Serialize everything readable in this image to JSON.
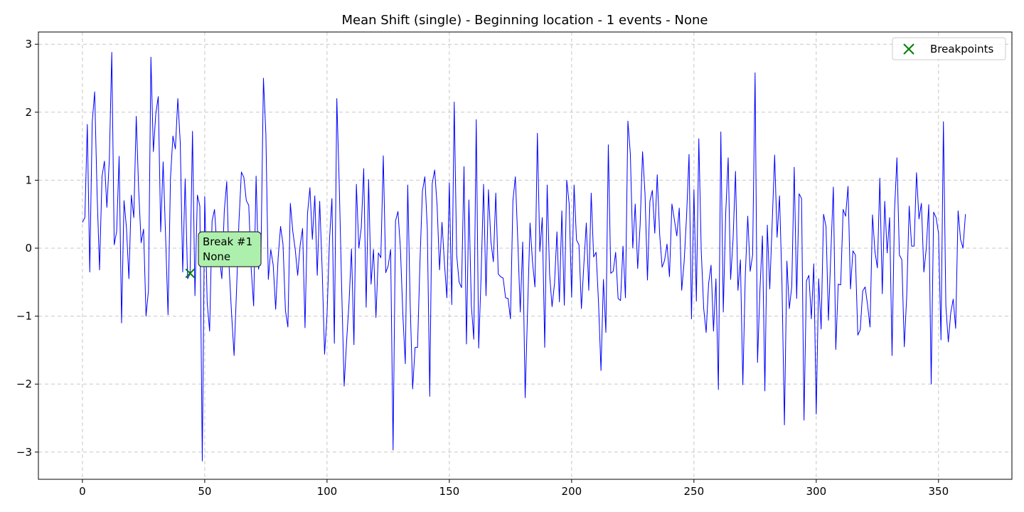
{
  "chart_data": {
    "type": "line",
    "title": "Mean Shift (single) - Beginning location - 1 events - None",
    "xlabel": "",
    "ylabel": "",
    "xlim": [
      -18,
      380
    ],
    "ylim": [
      -3.4,
      3.18
    ],
    "xticks": [
      0,
      50,
      100,
      150,
      200,
      250,
      300,
      350
    ],
    "yticks": [
      -3,
      -2,
      -1,
      0,
      1,
      2,
      3
    ],
    "grid": true,
    "series": [
      {
        "name": "",
        "color": "#0000ff",
        "x_start": 0,
        "values": [
          0.38,
          0.45,
          1.82,
          -0.35,
          1.85,
          2.3,
          0.8,
          -0.32,
          1.05,
          1.28,
          0.6,
          1.3,
          2.88,
          0.05,
          0.25,
          1.35,
          -1.1,
          0.7,
          0.3,
          -0.45,
          0.78,
          0.45,
          1.94,
          0.85,
          0.08,
          0.28,
          -1.0,
          -0.62,
          2.81,
          1.42,
          1.98,
          2.23,
          0.24,
          1.27,
          0.18,
          -0.98,
          1.03,
          1.65,
          1.46,
          2.2,
          1.55,
          -0.35,
          1.02,
          -0.45,
          -0.38,
          1.72,
          -0.7,
          0.78,
          0.62,
          -3.13,
          0.76,
          -0.8,
          -1.22,
          0.4,
          0.57,
          0.0,
          -0.14,
          -0.45,
          0.55,
          0.98,
          -0.3,
          -0.98,
          -1.58,
          -0.62,
          0.4,
          1.12,
          1.04,
          0.7,
          0.63,
          -0.3,
          -0.85,
          1.06,
          -0.31,
          -0.1,
          2.5,
          1.68,
          -0.46,
          -0.02,
          -0.25,
          -0.9,
          -0.15,
          0.32,
          0.06,
          -0.92,
          -1.16,
          0.66,
          0.25,
          -0.02,
          -0.4,
          0.04,
          0.29,
          -1.17,
          0.5,
          0.89,
          0.13,
          0.77,
          -0.4,
          0.69,
          -0.3,
          -1.56,
          -0.98,
          0.12,
          0.73,
          -1.4,
          2.2,
          0.93,
          -0.61,
          -2.03,
          -1.37,
          -0.8,
          -0.01,
          -1.42,
          0.94,
          0.0,
          0.3,
          1.17,
          -0.87,
          1.01,
          -0.53,
          -0.02,
          -1.02,
          -0.07,
          -0.14,
          1.36,
          -0.36,
          -0.26,
          -0.02,
          -2.97,
          0.4,
          0.54,
          0.0,
          -0.98,
          -1.7,
          0.93,
          -0.83,
          -2.07,
          -1.46,
          -1.46,
          -0.2,
          0.84,
          1.05,
          0.29,
          -2.18,
          0.95,
          1.15,
          0.63,
          -0.32,
          0.38,
          -0.22,
          -0.73,
          0.96,
          -0.83,
          2.15,
          -0.1,
          -0.5,
          -0.58,
          1.2,
          -1.41,
          0.71,
          -0.84,
          -1.34,
          1.89,
          -1.47,
          -0.4,
          0.94,
          -0.7,
          0.86,
          0.1,
          -0.2,
          0.81,
          -0.38,
          -0.42,
          -0.44,
          -0.73,
          -0.74,
          -1.04,
          0.7,
          1.05,
          0.1,
          -0.94,
          0.09,
          -2.2,
          -0.9,
          0.37,
          -0.2,
          -0.57,
          1.69,
          -0.05,
          0.45,
          -1.46,
          0.93,
          -0.39,
          -0.86,
          -0.52,
          0.24,
          -0.79,
          0.55,
          -0.84,
          1.0,
          0.65,
          -0.72,
          0.93,
          0.12,
          0.05,
          -0.89,
          -0.24,
          0.37,
          -0.62,
          0.81,
          -0.13,
          -0.06,
          -0.8,
          -1.8,
          -0.46,
          -1.24,
          1.52,
          -0.37,
          -0.34,
          -0.06,
          -0.74,
          -0.77,
          0.03,
          -0.73,
          1.87,
          1.39,
          0.0,
          0.65,
          -0.3,
          0.34,
          1.42,
          0.8,
          -0.47,
          0.69,
          0.85,
          0.22,
          1.08,
          0.2,
          -0.28,
          -0.18,
          0.06,
          -0.42,
          0.65,
          0.42,
          0.18,
          0.59,
          -0.62,
          -0.2,
          0.48,
          1.38,
          -1.04,
          0.86,
          -0.78,
          1.61,
          -0.05,
          -0.89,
          -1.24,
          -0.52,
          -0.25,
          -1.22,
          -0.45,
          -2.08,
          1.71,
          -0.94,
          0.52,
          1.33,
          -0.46,
          0.13,
          1.13,
          -0.62,
          -0.17,
          -2.01,
          -0.4,
          0.47,
          -0.34,
          -0.1,
          2.58,
          -1.68,
          -0.6,
          0.18,
          -2.1,
          0.34,
          -0.6,
          0.37,
          1.37,
          0.16,
          0.77,
          -0.53,
          -2.6,
          -0.19,
          -0.89,
          -0.56,
          1.19,
          -0.74,
          0.8,
          0.73,
          -2.53,
          -0.48,
          -0.4,
          -1.04,
          -0.23,
          -2.44,
          -0.45,
          -1.19,
          0.5,
          0.32,
          -1.06,
          -0.05,
          0.9,
          -1.49,
          -0.53,
          -0.54,
          0.57,
          0.47,
          0.91,
          -0.6,
          -0.04,
          -0.1,
          -1.28,
          -1.2,
          -0.63,
          -0.57,
          -0.84,
          -1.16,
          0.49,
          -0.05,
          -0.29,
          1.03,
          -0.67,
          0.69,
          -0.07,
          0.45,
          -1.58,
          0.54,
          1.33,
          -0.1,
          -0.17,
          -1.45,
          -0.7,
          0.62,
          0.03,
          0.03,
          1.11,
          0.43,
          0.66,
          -0.35,
          0.0,
          0.64,
          -2.0,
          0.53,
          0.45,
          0.22,
          -1.35,
          1.86,
          -0.85,
          -1.38,
          -0.95,
          -0.75,
          -1.18,
          0.55,
          0.13,
          0.0,
          0.5
        ]
      }
    ],
    "breakpoints": {
      "legend_label": "Breakpoints",
      "marker_color": "#008000",
      "points": [
        {
          "x": 44,
          "y": -0.37
        }
      ]
    },
    "annotations": [
      {
        "line1": "Break #1",
        "line2": "None",
        "box_color": "#adf0ad",
        "edge_color": "#333333"
      }
    ],
    "legend_position": "top-right"
  }
}
